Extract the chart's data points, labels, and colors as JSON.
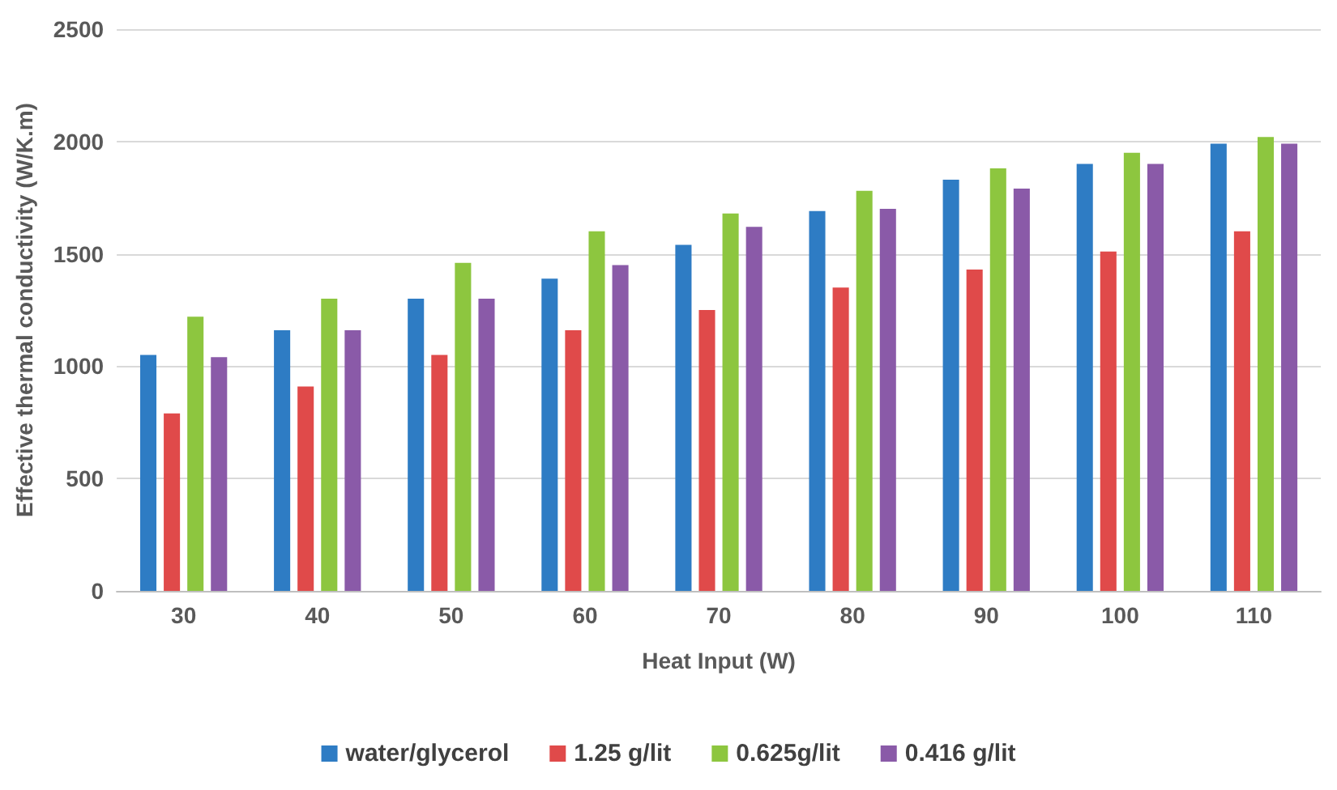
{
  "chart_data": {
    "type": "bar",
    "xlabel": "Heat Input (W)",
    "ylabel": "Effective thermal conductivity (W/K.m)",
    "categories": [
      "30",
      "40",
      "50",
      "60",
      "70",
      "80",
      "90",
      "100",
      "110"
    ],
    "series": [
      {
        "name": "water/glycerol",
        "color": "#2e7cc4",
        "values": [
          1050,
          1160,
          1300,
          1390,
          1540,
          1690,
          1830,
          1900,
          1990
        ]
      },
      {
        "name": "1.25 g/lit",
        "color": "#e04a4a",
        "values": [
          790,
          910,
          1050,
          1160,
          1250,
          1350,
          1430,
          1510,
          1600
        ]
      },
      {
        "name": "0.625g/lit",
        "color": "#8dc63f",
        "values": [
          1220,
          1300,
          1460,
          1600,
          1680,
          1780,
          1880,
          1950,
          2020
        ]
      },
      {
        "name": "0.416 g/lit",
        "color": "#8a5aa8",
        "values": [
          1040,
          1160,
          1300,
          1450,
          1620,
          1700,
          1790,
          1900,
          1990
        ]
      }
    ],
    "ylim": [
      0,
      2500
    ],
    "yticks": [
      0,
      500,
      1000,
      1500,
      2000,
      2500
    ],
    "grid": "y",
    "legend": "bottom"
  }
}
